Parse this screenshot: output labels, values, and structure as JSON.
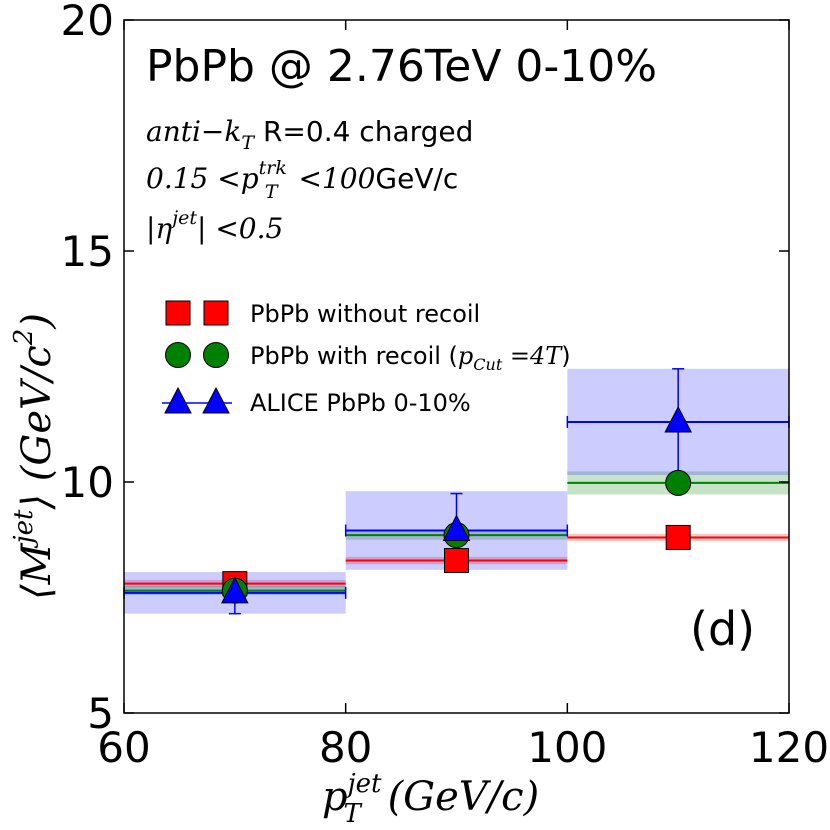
{
  "chart_data": {
    "type": "scatter",
    "title": "PbPb @ 2.76TeV 0-10%",
    "panel_label": "(d)",
    "annotations": {
      "algo_math": "anti−k",
      "algo_sub": "T",
      "algo_text": " R=0.4 charged",
      "trk_low": "0.15 <",
      "trk_p": "p",
      "trk_sup": "trk",
      "trk_sub": "T",
      "trk_high": " <100",
      "trk_unit": "GeV/c",
      "eta_text": "|η",
      "eta_sup": "jet",
      "eta_rest": "| <0.5"
    },
    "xlabel": {
      "p": "p",
      "sup": "jet",
      "sub": "T",
      "rest": " (GeV/c)"
    },
    "ylabel": {
      "open": "⟨M",
      "sup": "jet",
      "mid": "⟩ (GeV/c",
      "sup2": "2",
      "close": ")"
    },
    "xlim": [
      60,
      120
    ],
    "ylim": [
      5,
      20
    ],
    "xticks": [
      "60",
      "80",
      "100",
      "120"
    ],
    "yticks": [
      "5",
      "10",
      "15",
      "20"
    ],
    "legend_position": "upper-left",
    "series": [
      {
        "name": "PbPb without recoil",
        "color": "#ff0000",
        "marker": "square",
        "x": [
          70,
          90,
          110
        ],
        "xerr": [
          10,
          10,
          10
        ],
        "y": [
          7.8,
          8.3,
          8.8
        ],
        "band": [
          0.08,
          0.08,
          0.08
        ]
      },
      {
        "name": "PbPb with recoil",
        "legend_math_p": "p",
        "legend_math_sub": "Cut",
        "legend_math_rest": " =4T",
        "color": "#008000",
        "marker": "circle",
        "x": [
          70,
          90,
          110
        ],
        "xerr": [
          10,
          10,
          10
        ],
        "y": [
          7.65,
          8.85,
          9.98
        ],
        "band": [
          0.1,
          0.1,
          0.25
        ]
      },
      {
        "name": "ALICE PbPb 0-10%",
        "color": "#0000ff",
        "marker": "triangle",
        "x": [
          70,
          90,
          110
        ],
        "xerr": [
          10,
          10,
          10
        ],
        "y": [
          7.6,
          8.95,
          11.3
        ],
        "yerr": [
          0.45,
          0.8,
          1.15
        ],
        "syst": [
          0.45,
          0.85,
          1.15
        ]
      }
    ]
  }
}
